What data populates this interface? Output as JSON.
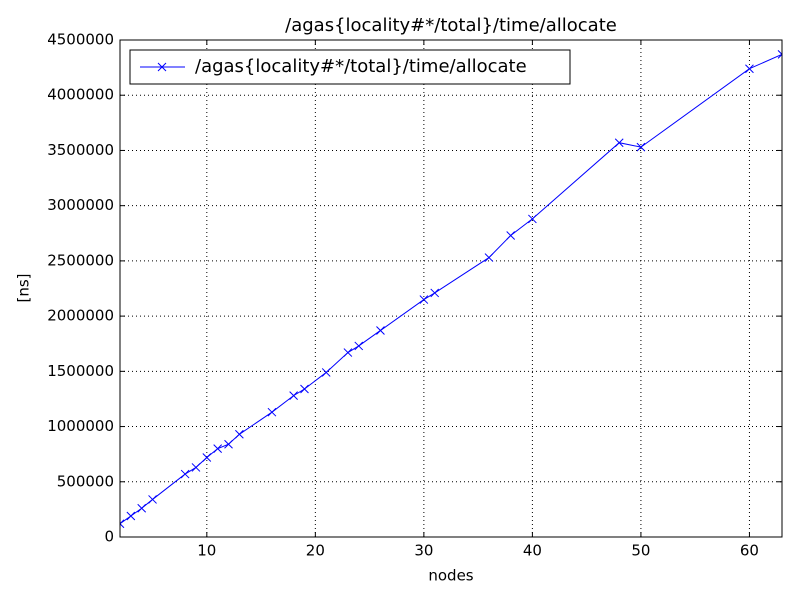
{
  "chart_data": {
    "type": "line",
    "title": "/agas{locality#*/total}/time/allocate",
    "x_label": "nodes",
    "y_label": "[ns]",
    "series": [
      {
        "name": "/agas{locality#*/total}/time/allocate",
        "color": "#0000ff",
        "x": [
          2,
          3,
          4,
          5,
          8,
          9,
          10,
          11,
          12,
          13,
          16,
          18,
          19,
          21,
          23,
          24,
          26,
          30,
          31,
          36,
          38,
          40,
          48,
          50,
          60,
          63
        ],
        "values": [
          120000,
          190000,
          260000,
          340000,
          570000,
          630000,
          720000,
          800000,
          840000,
          930000,
          1130000,
          1280000,
          1340000,
          1490000,
          1670000,
          1730000,
          1870000,
          2150000,
          2210000,
          2530000,
          2730000,
          2880000,
          3570000,
          3530000,
          4240000,
          4370000
        ]
      }
    ],
    "xlim": [
      2,
      63
    ],
    "xticks": [
      10,
      20,
      30,
      40,
      50,
      60
    ],
    "ylim": [
      0,
      4500000
    ],
    "yticks": [
      0,
      500000,
      1000000,
      1500000,
      2000000,
      2500000,
      3000000,
      3500000,
      4000000,
      4500000
    ],
    "grid": true,
    "legend": "upper left"
  }
}
